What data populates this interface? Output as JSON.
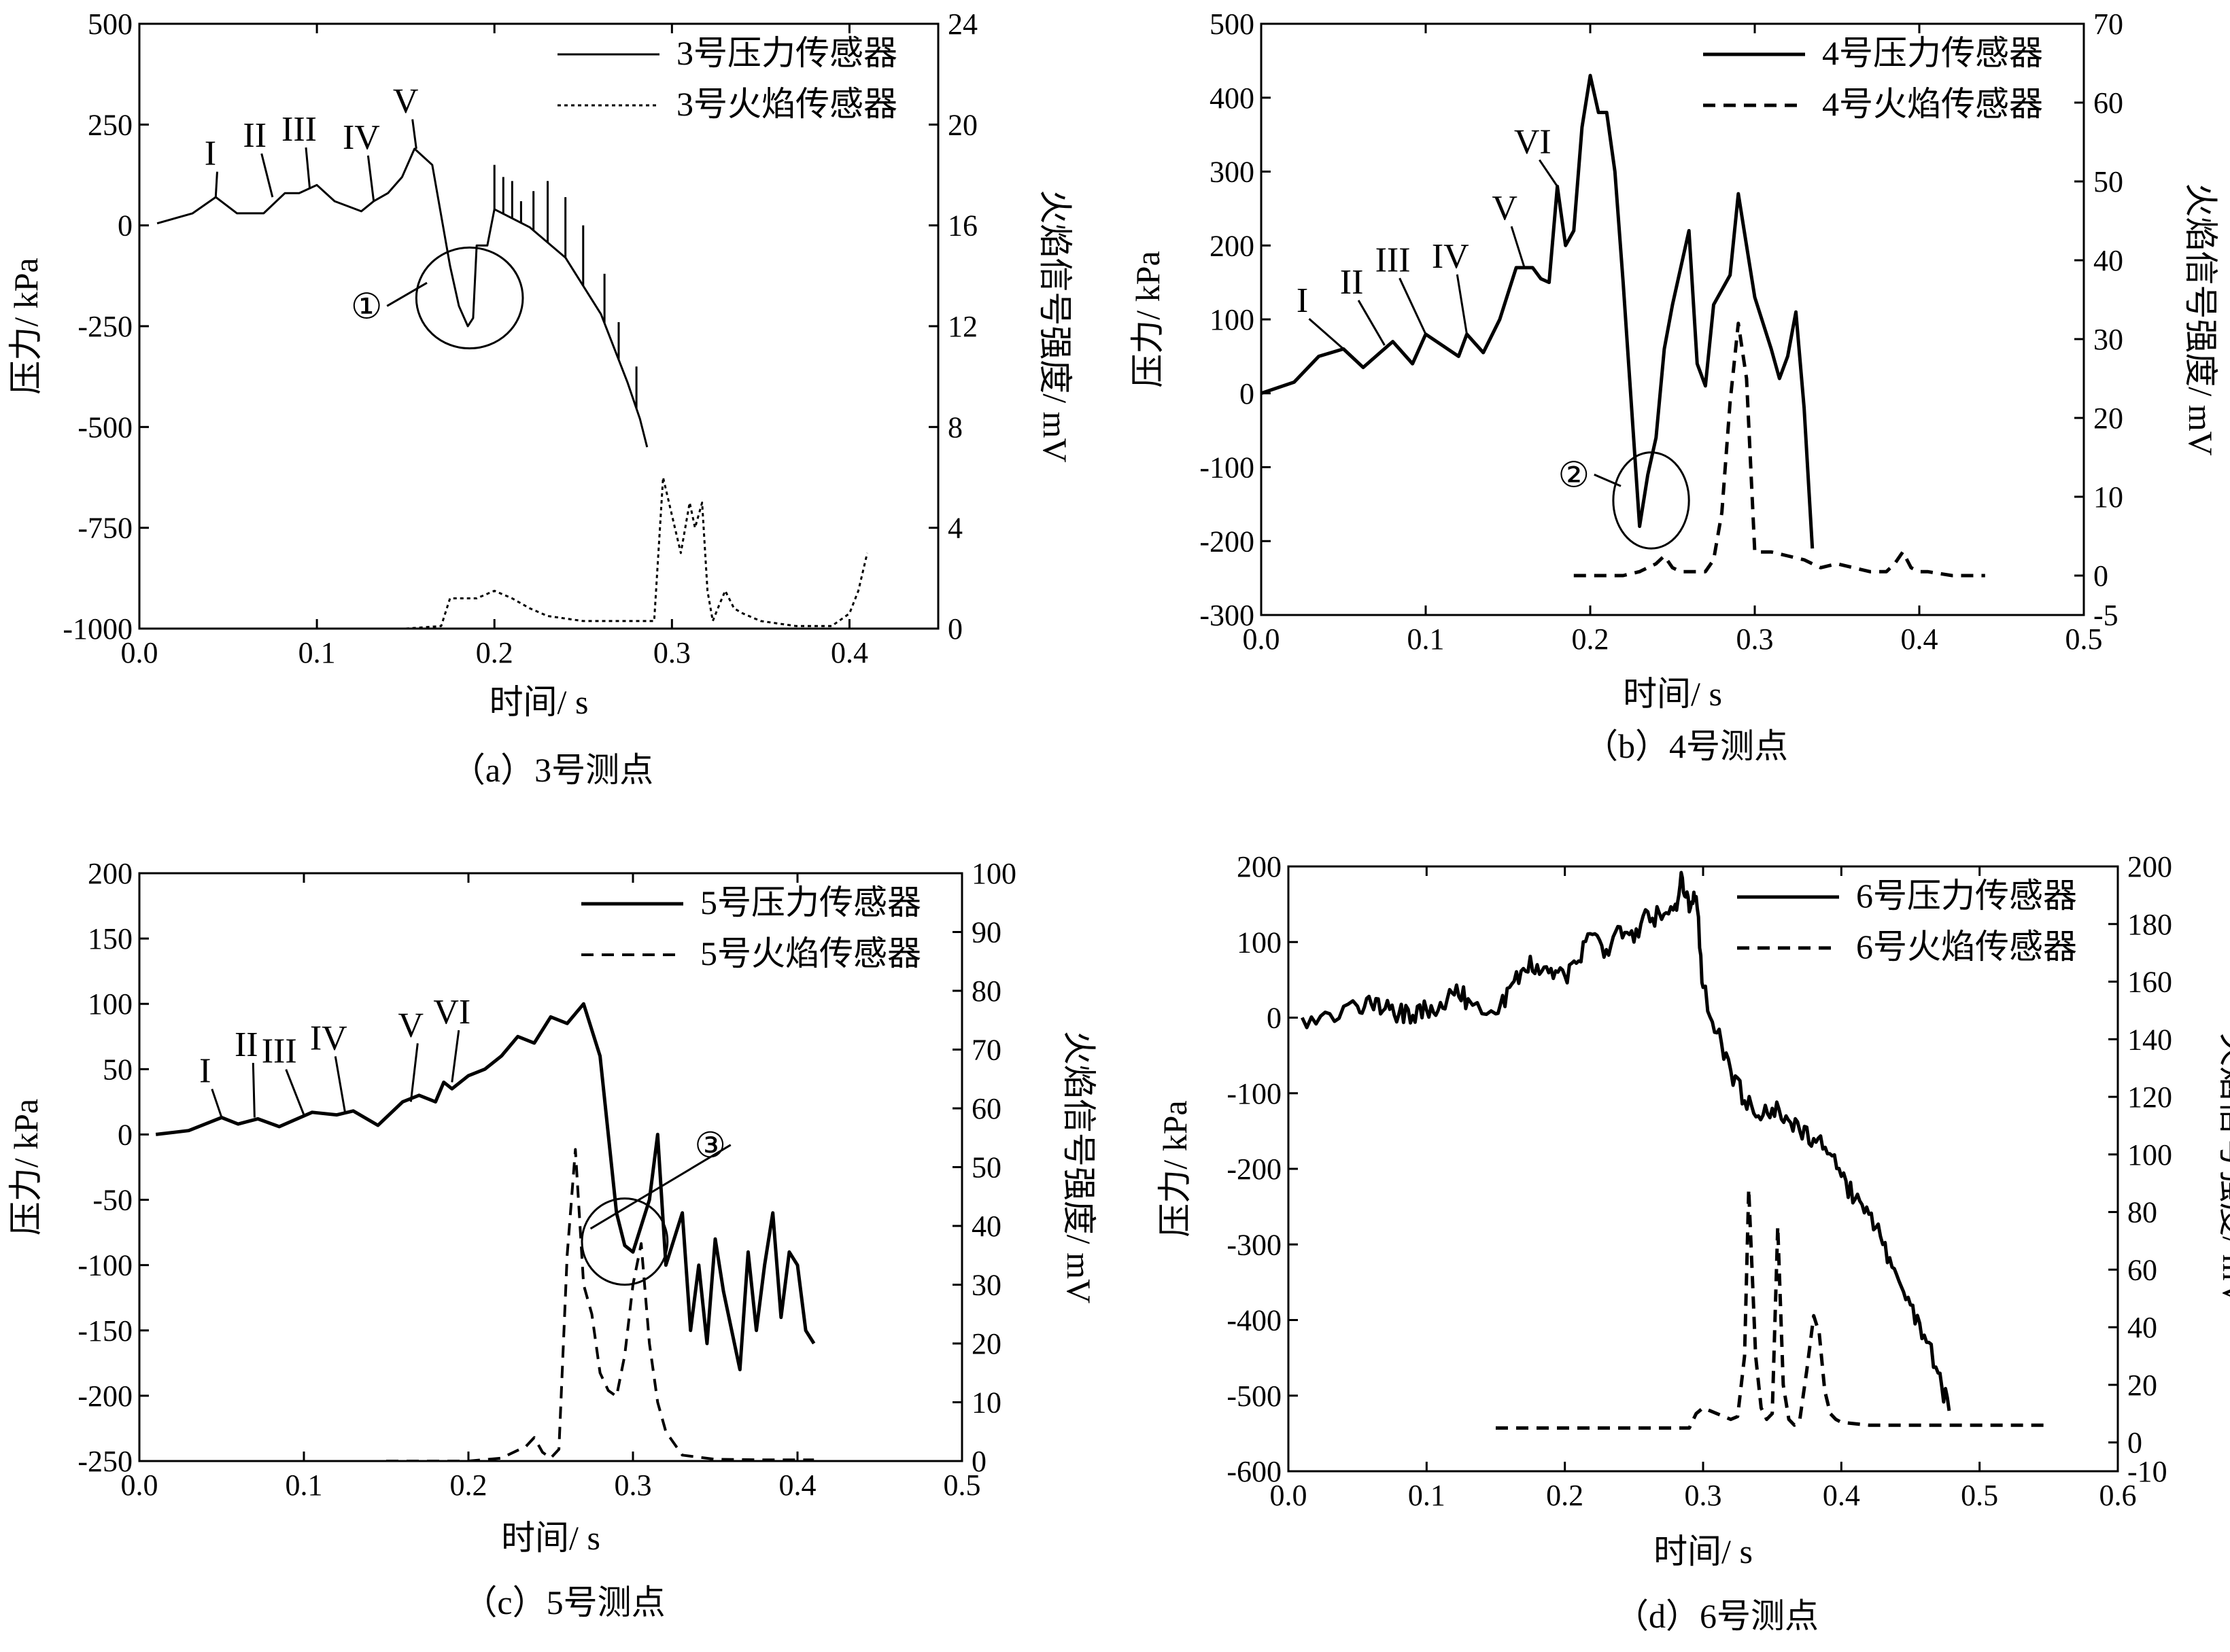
{
  "chart_data": [
    {
      "type": "line",
      "panel": "a",
      "caption": "（a）3号测点",
      "xlabel": "时间/ s",
      "ylabel": "压力/ kPa",
      "y2label": "火焰信号强度/ mV",
      "xlim": [
        0,
        0.45
      ],
      "xticks": [
        0.0,
        0.1,
        0.2,
        0.3,
        0.4
      ],
      "xtick_decimals": 1,
      "ylim": [
        -1000,
        500
      ],
      "yticks": [
        -1000,
        -750,
        -500,
        -250,
        0,
        250,
        500
      ],
      "y2lim": [
        0,
        24
      ],
      "y2ticks": [
        0,
        4,
        8,
        12,
        16,
        20,
        24
      ],
      "legend_position": "top-right",
      "series": [
        {
          "name": "3号压力传感器",
          "axis": "left",
          "style": "solid",
          "width": 3,
          "noise": 0.0,
          "x": [
            0.01,
            0.03,
            0.043,
            0.055,
            0.07,
            0.082,
            0.09,
            0.1,
            0.11,
            0.125,
            0.132,
            0.14,
            0.148,
            0.155,
            0.165,
            0.175,
            0.18,
            0.185,
            0.188,
            0.19,
            0.196,
            0.2,
            0.22,
            0.24,
            0.26,
            0.275,
            0.282,
            0.286
          ],
          "y": [
            5,
            30,
            70,
            30,
            30,
            80,
            80,
            100,
            60,
            35,
            60,
            80,
            120,
            190,
            150,
            -100,
            -200,
            -250,
            -230,
            -50,
            -50,
            40,
            -5,
            -80,
            -220,
            -390,
            -480,
            -550
          ],
          "spikes": [
            {
              "x": 0.2,
              "y": 150
            },
            {
              "x": 0.205,
              "y": 120
            },
            {
              "x": 0.21,
              "y": 110
            },
            {
              "x": 0.215,
              "y": 60
            },
            {
              "x": 0.222,
              "y": 85
            },
            {
              "x": 0.23,
              "y": 110
            },
            {
              "x": 0.24,
              "y": 70
            },
            {
              "x": 0.25,
              "y": 0
            },
            {
              "x": 0.262,
              "y": -120
            },
            {
              "x": 0.27,
              "y": -240
            },
            {
              "x": 0.28,
              "y": -350
            }
          ]
        },
        {
          "name": "3号火焰传感器",
          "axis": "right",
          "style": "dotted",
          "width": 3,
          "noise": 0.0,
          "x": [
            0.15,
            0.17,
            0.175,
            0.18,
            0.19,
            0.2,
            0.21,
            0.22,
            0.23,
            0.25,
            0.29,
            0.295,
            0.3,
            0.305,
            0.31,
            0.313,
            0.317,
            0.32,
            0.323,
            0.327,
            0.33,
            0.335,
            0.34,
            0.35,
            0.37,
            0.39,
            0.4,
            0.405,
            0.41
          ],
          "y": [
            0,
            0.1,
            1.2,
            1.2,
            1.2,
            1.5,
            1.2,
            0.8,
            0.5,
            0.3,
            0.3,
            6.0,
            4.5,
            3.0,
            5.0,
            4.0,
            5.0,
            1.5,
            0.3,
            1.0,
            1.5,
            0.8,
            0.6,
            0.3,
            0.1,
            0.1,
            0.6,
            1.5,
            3.0
          ]
        }
      ],
      "annotations": [
        {
          "text": "I",
          "x": 0.04,
          "y": 150,
          "tx": 0.043,
          "ty": 70
        },
        {
          "text": "II",
          "x": 0.065,
          "y": 195,
          "tx": 0.075,
          "ty": 70
        },
        {
          "text": "III",
          "x": 0.09,
          "y": 210,
          "tx": 0.096,
          "ty": 90
        },
        {
          "text": "IV",
          "x": 0.125,
          "y": 190,
          "tx": 0.132,
          "ty": 60
        },
        {
          "text": "V",
          "x": 0.15,
          "y": 280,
          "tx": 0.156,
          "ty": 190
        }
      ],
      "circle": {
        "label": "①",
        "cx": 0.186,
        "cy": -180,
        "rx": 0.03,
        "ry": 125,
        "lx": 0.128,
        "ly": -200
      }
    },
    {
      "type": "line",
      "panel": "b",
      "caption": "（b）4号测点",
      "xlabel": "时间/ s",
      "ylabel": "压力/ kPa",
      "y2label": "火焰信号强度/ mV",
      "xlim": [
        0,
        0.5
      ],
      "xticks": [
        0.0,
        0.1,
        0.2,
        0.3,
        0.4,
        0.5
      ],
      "xtick_decimals": 1,
      "ylim": [
        -300,
        500
      ],
      "yticks": [
        -300,
        -200,
        -100,
        0,
        100,
        200,
        300,
        400,
        500
      ],
      "y2lim": [
        -5,
        70
      ],
      "y2ticks": [
        -5,
        0,
        10,
        20,
        30,
        40,
        50,
        60,
        70
      ],
      "legend_position": "top-right",
      "series": [
        {
          "name": "4号压力传感器",
          "axis": "left",
          "style": "solid",
          "width": 5,
          "noise": 0.0,
          "x": [
            0.0,
            0.02,
            0.035,
            0.05,
            0.062,
            0.08,
            0.092,
            0.1,
            0.12,
            0.125,
            0.135,
            0.145,
            0.155,
            0.165,
            0.17,
            0.175,
            0.18,
            0.185,
            0.19,
            0.195,
            0.2,
            0.205,
            0.21,
            0.215,
            0.22,
            0.23,
            0.235,
            0.24,
            0.245,
            0.25,
            0.26,
            0.265,
            0.27,
            0.275,
            0.285,
            0.29,
            0.295,
            0.3,
            0.31,
            0.315,
            0.32,
            0.325,
            0.33,
            0.335
          ],
          "y": [
            0,
            15,
            50,
            60,
            35,
            70,
            40,
            80,
            50,
            80,
            55,
            100,
            170,
            170,
            155,
            150,
            280,
            200,
            220,
            360,
            430,
            380,
            380,
            300,
            150,
            -180,
            -110,
            -60,
            60,
            120,
            220,
            40,
            10,
            120,
            160,
            270,
            200,
            130,
            60,
            20,
            50,
            110,
            -20,
            -210
          ]
        },
        {
          "name": "4号火焰传感器",
          "axis": "right",
          "style": "dashed",
          "width": 5,
          "noise": 0.0,
          "x": [
            0.19,
            0.22,
            0.23,
            0.24,
            0.245,
            0.25,
            0.255,
            0.27,
            0.275,
            0.28,
            0.285,
            0.29,
            0.295,
            0.3,
            0.31,
            0.32,
            0.33,
            0.34,
            0.35,
            0.36,
            0.37,
            0.38,
            0.385,
            0.39,
            0.395,
            0.4,
            0.405,
            0.42,
            0.44
          ],
          "y": [
            0,
            0,
            0.5,
            1.5,
            2.5,
            1.0,
            0.5,
            0.5,
            2.0,
            8.0,
            22.0,
            32.0,
            25.0,
            3.0,
            3.0,
            2.5,
            2.0,
            1.0,
            1.5,
            1.0,
            0.5,
            0.5,
            1.5,
            3.0,
            1.0,
            0.5,
            0.5,
            0,
            0
          ]
        }
      ],
      "annotations": [
        {
          "text": "I",
          "x": 0.025,
          "y": 110,
          "tx": 0.05,
          "ty": 60
        },
        {
          "text": "II",
          "x": 0.055,
          "y": 135,
          "tx": 0.075,
          "ty": 65
        },
        {
          "text": "III",
          "x": 0.08,
          "y": 165,
          "tx": 0.1,
          "ty": 80
        },
        {
          "text": "IV",
          "x": 0.115,
          "y": 170,
          "tx": 0.125,
          "ty": 80
        },
        {
          "text": "V",
          "x": 0.148,
          "y": 235,
          "tx": 0.16,
          "ty": 170
        },
        {
          "text": "VI",
          "x": 0.165,
          "y": 325,
          "tx": 0.18,
          "ty": 280
        }
      ],
      "circle": {
        "label": "②",
        "cx": 0.237,
        "cy": -145,
        "rx": 0.023,
        "ry": 65,
        "lx": 0.19,
        "ly": -110
      }
    },
    {
      "type": "line",
      "panel": "c",
      "caption": "（c）5号测点",
      "xlabel": "时间/ s",
      "ylabel": "压力/ kPa",
      "y2label": "火焰信号强度/ mV",
      "xlim": [
        0,
        0.5
      ],
      "xticks": [
        0.0,
        0.1,
        0.2,
        0.3,
        0.4,
        0.5
      ],
      "xtick_decimals": 1,
      "ylim": [
        -250,
        200
      ],
      "yticks": [
        -250,
        -200,
        -150,
        -100,
        -50,
        0,
        50,
        100,
        150,
        200
      ],
      "y2lim": [
        0,
        100
      ],
      "y2ticks": [
        0,
        10,
        20,
        30,
        40,
        50,
        60,
        70,
        80,
        90,
        100
      ],
      "legend_position": "top-right",
      "series": [
        {
          "name": "5号压力传感器",
          "axis": "left",
          "style": "solid",
          "width": 5,
          "noise": 0.0,
          "x": [
            0.01,
            0.03,
            0.05,
            0.06,
            0.072,
            0.085,
            0.105,
            0.12,
            0.13,
            0.145,
            0.16,
            0.17,
            0.18,
            0.185,
            0.19,
            0.2,
            0.21,
            0.22,
            0.23,
            0.24,
            0.25,
            0.26,
            0.27,
            0.28,
            0.285,
            0.29,
            0.295,
            0.3,
            0.305,
            0.31,
            0.315,
            0.32,
            0.33,
            0.335,
            0.34,
            0.345,
            0.35,
            0.355,
            0.36,
            0.365,
            0.37,
            0.375,
            0.38,
            0.385,
            0.39,
            0.395,
            0.4,
            0.405,
            0.41
          ],
          "y": [
            0,
            3,
            13,
            8,
            12,
            6,
            17,
            15,
            18,
            7,
            25,
            30,
            25,
            40,
            35,
            45,
            50,
            60,
            75,
            70,
            90,
            85,
            100,
            60,
            0,
            -60,
            -85,
            -90,
            -70,
            -50,
            0,
            -100,
            -60,
            -150,
            -100,
            -160,
            -80,
            -120,
            -150,
            -180,
            -90,
            -150,
            -100,
            -60,
            -140,
            -90,
            -100,
            -150,
            -160
          ]
        },
        {
          "name": "5号火焰传感器",
          "axis": "right",
          "style": "dashed",
          "width": 4,
          "noise": 0.0,
          "x": [
            0.15,
            0.2,
            0.22,
            0.235,
            0.24,
            0.245,
            0.25,
            0.255,
            0.26,
            0.265,
            0.27,
            0.275,
            0.28,
            0.285,
            0.29,
            0.295,
            0.3,
            0.305,
            0.31,
            0.315,
            0.32,
            0.33,
            0.35,
            0.38,
            0.41
          ],
          "y": [
            0,
            0,
            0.5,
            2.5,
            4.0,
            1.5,
            0.5,
            2.0,
            35.0,
            53.0,
            30.0,
            25.0,
            15.0,
            12.0,
            11.0,
            18.0,
            30.0,
            37.0,
            20.0,
            10.0,
            5.0,
            1.0,
            0.3,
            0.2,
            0.2
          ]
        }
      ],
      "annotations": [
        {
          "text": "I",
          "x": 0.04,
          "y": 40,
          "tx": 0.05,
          "ty": 13
        },
        {
          "text": "II",
          "x": 0.065,
          "y": 60,
          "tx": 0.07,
          "ty": 13
        },
        {
          "text": "III",
          "x": 0.085,
          "y": 55,
          "tx": 0.1,
          "ty": 15
        },
        {
          "text": "IV",
          "x": 0.115,
          "y": 65,
          "tx": 0.125,
          "ty": 17
        },
        {
          "text": "V",
          "x": 0.165,
          "y": 75,
          "tx": 0.165,
          "ty": 25
        },
        {
          "text": "VI",
          "x": 0.19,
          "y": 85,
          "tx": 0.19,
          "ty": 40
        }
      ],
      "circle": {
        "label": "③",
        "cx": 0.295,
        "cy": -82,
        "rx": 0.026,
        "ry": 33,
        "lx": 0.347,
        "ly": -8
      }
    },
    {
      "type": "line",
      "panel": "d",
      "caption": "（d）6号测点",
      "xlabel": "时间/ s",
      "ylabel": "压力/ kPa",
      "y2label": "火焰信号强度/ mV",
      "xlim": [
        0,
        0.6
      ],
      "xticks": [
        0.0,
        0.1,
        0.2,
        0.3,
        0.4,
        0.5,
        0.6
      ],
      "xtick_decimals": 1,
      "ylim": [
        -600,
        200
      ],
      "yticks": [
        -600,
        -500,
        -400,
        -300,
        -200,
        -100,
        0,
        100,
        200
      ],
      "y2lim": [
        -10,
        200
      ],
      "y2ticks": [
        -10,
        0,
        20,
        40,
        60,
        80,
        100,
        120,
        140,
        160,
        180,
        200
      ],
      "legend_position": "top-right",
      "series": [
        {
          "name": "6号压力传感器",
          "axis": "left",
          "style": "solid",
          "width": 5,
          "noise": 1.0,
          "x": [
            0.01,
            0.03,
            0.05,
            0.06,
            0.07,
            0.08,
            0.09,
            0.1,
            0.11,
            0.12,
            0.13,
            0.15,
            0.16,
            0.17,
            0.18,
            0.19,
            0.2,
            0.21,
            0.22,
            0.23,
            0.24,
            0.25,
            0.26,
            0.27,
            0.28,
            0.285,
            0.29,
            0.295,
            0.3,
            0.31,
            0.32,
            0.33,
            0.34,
            0.35,
            0.36,
            0.37,
            0.38,
            0.39,
            0.4,
            0.41,
            0.42,
            0.43,
            0.44,
            0.45,
            0.46,
            0.47,
            0.478
          ],
          "y": [
            0,
            5,
            15,
            18,
            12,
            5,
            3,
            10,
            20,
            30,
            25,
            5,
            40,
            65,
            70,
            65,
            55,
            75,
            110,
            90,
            120,
            100,
            140,
            130,
            150,
            185,
            140,
            160,
            40,
            -20,
            -70,
            -110,
            -130,
            -120,
            -130,
            -150,
            -160,
            -180,
            -210,
            -240,
            -260,
            -300,
            -340,
            -380,
            -420,
            -470,
            -520
          ]
        },
        {
          "name": "6号火焰传感器",
          "axis": "right",
          "style": "dashed",
          "width": 5,
          "noise": 0.0,
          "x": [
            0.15,
            0.28,
            0.29,
            0.295,
            0.3,
            0.31,
            0.32,
            0.325,
            0.33,
            0.333,
            0.338,
            0.342,
            0.346,
            0.35,
            0.354,
            0.358,
            0.362,
            0.366,
            0.37,
            0.375,
            0.38,
            0.384,
            0.388,
            0.392,
            0.396,
            0.4,
            0.42,
            0.5,
            0.55
          ],
          "y": [
            5,
            5,
            5,
            10,
            12,
            10,
            8,
            9,
            30,
            88,
            30,
            12,
            8,
            10,
            75,
            20,
            8,
            6,
            8,
            25,
            44,
            38,
            18,
            10,
            8,
            7,
            6,
            6,
            6
          ]
        }
      ]
    }
  ]
}
